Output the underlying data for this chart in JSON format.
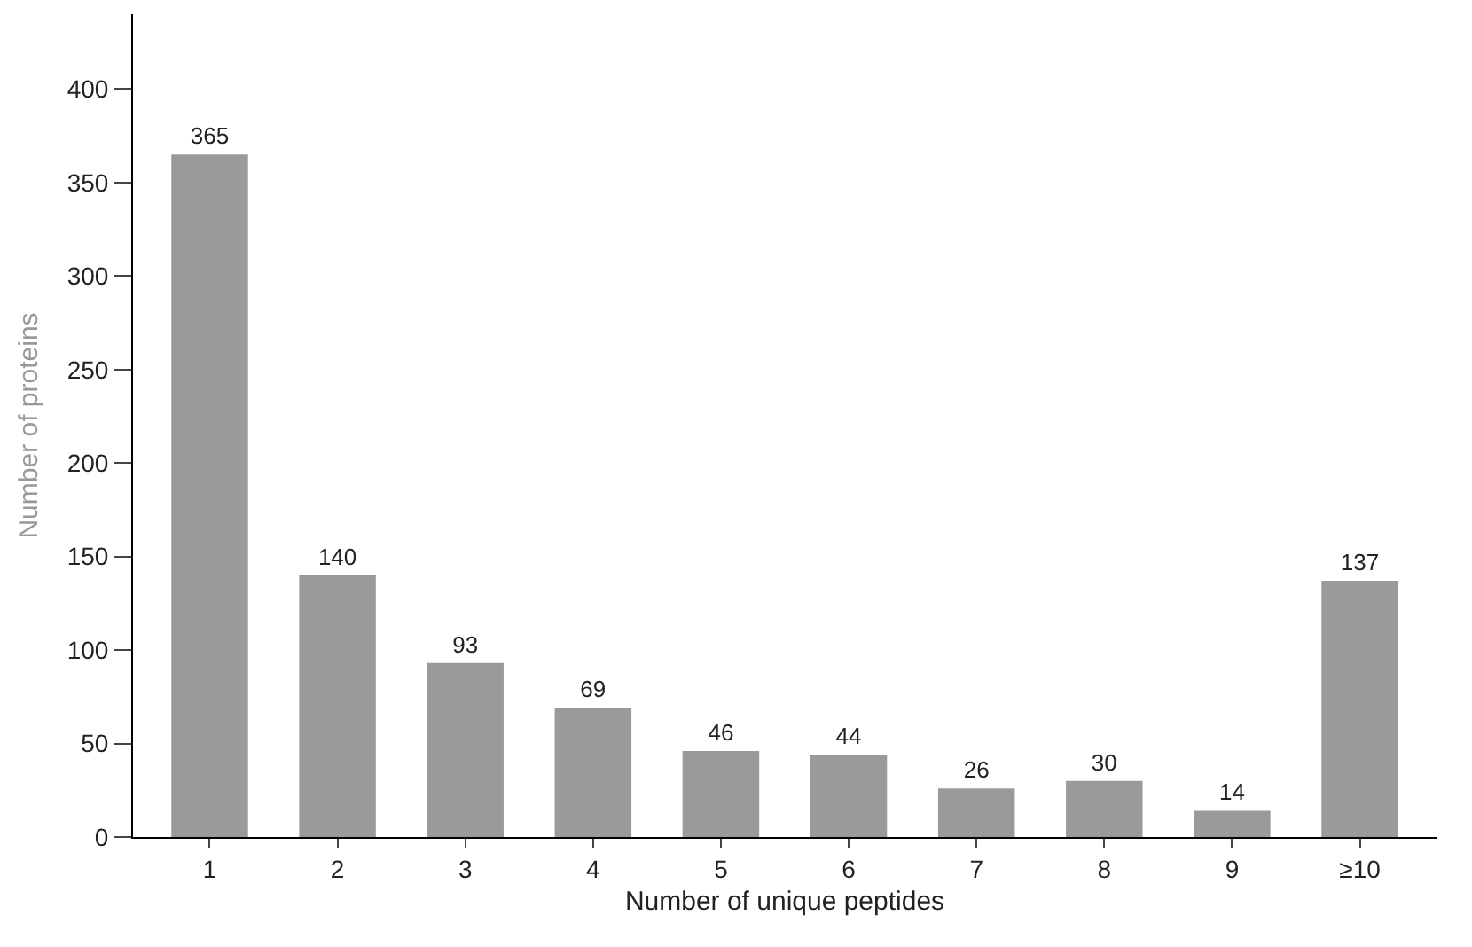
{
  "chart_data": {
    "type": "bar",
    "xlabel": "Number of unique peptides",
    "ylabel": "Number of proteins",
    "categories": [
      "1",
      "2",
      "3",
      "4",
      "5",
      "6",
      "7",
      "8",
      "9",
      "≥10"
    ],
    "values": [
      365,
      140,
      93,
      69,
      46,
      44,
      26,
      30,
      14,
      137
    ],
    "color": "#9a9a9a",
    "ylim": [
      0,
      440
    ],
    "yticks": [
      0,
      50,
      100,
      150,
      200,
      250,
      300,
      350,
      400
    ],
    "data_labels": true,
    "legend": false
  }
}
